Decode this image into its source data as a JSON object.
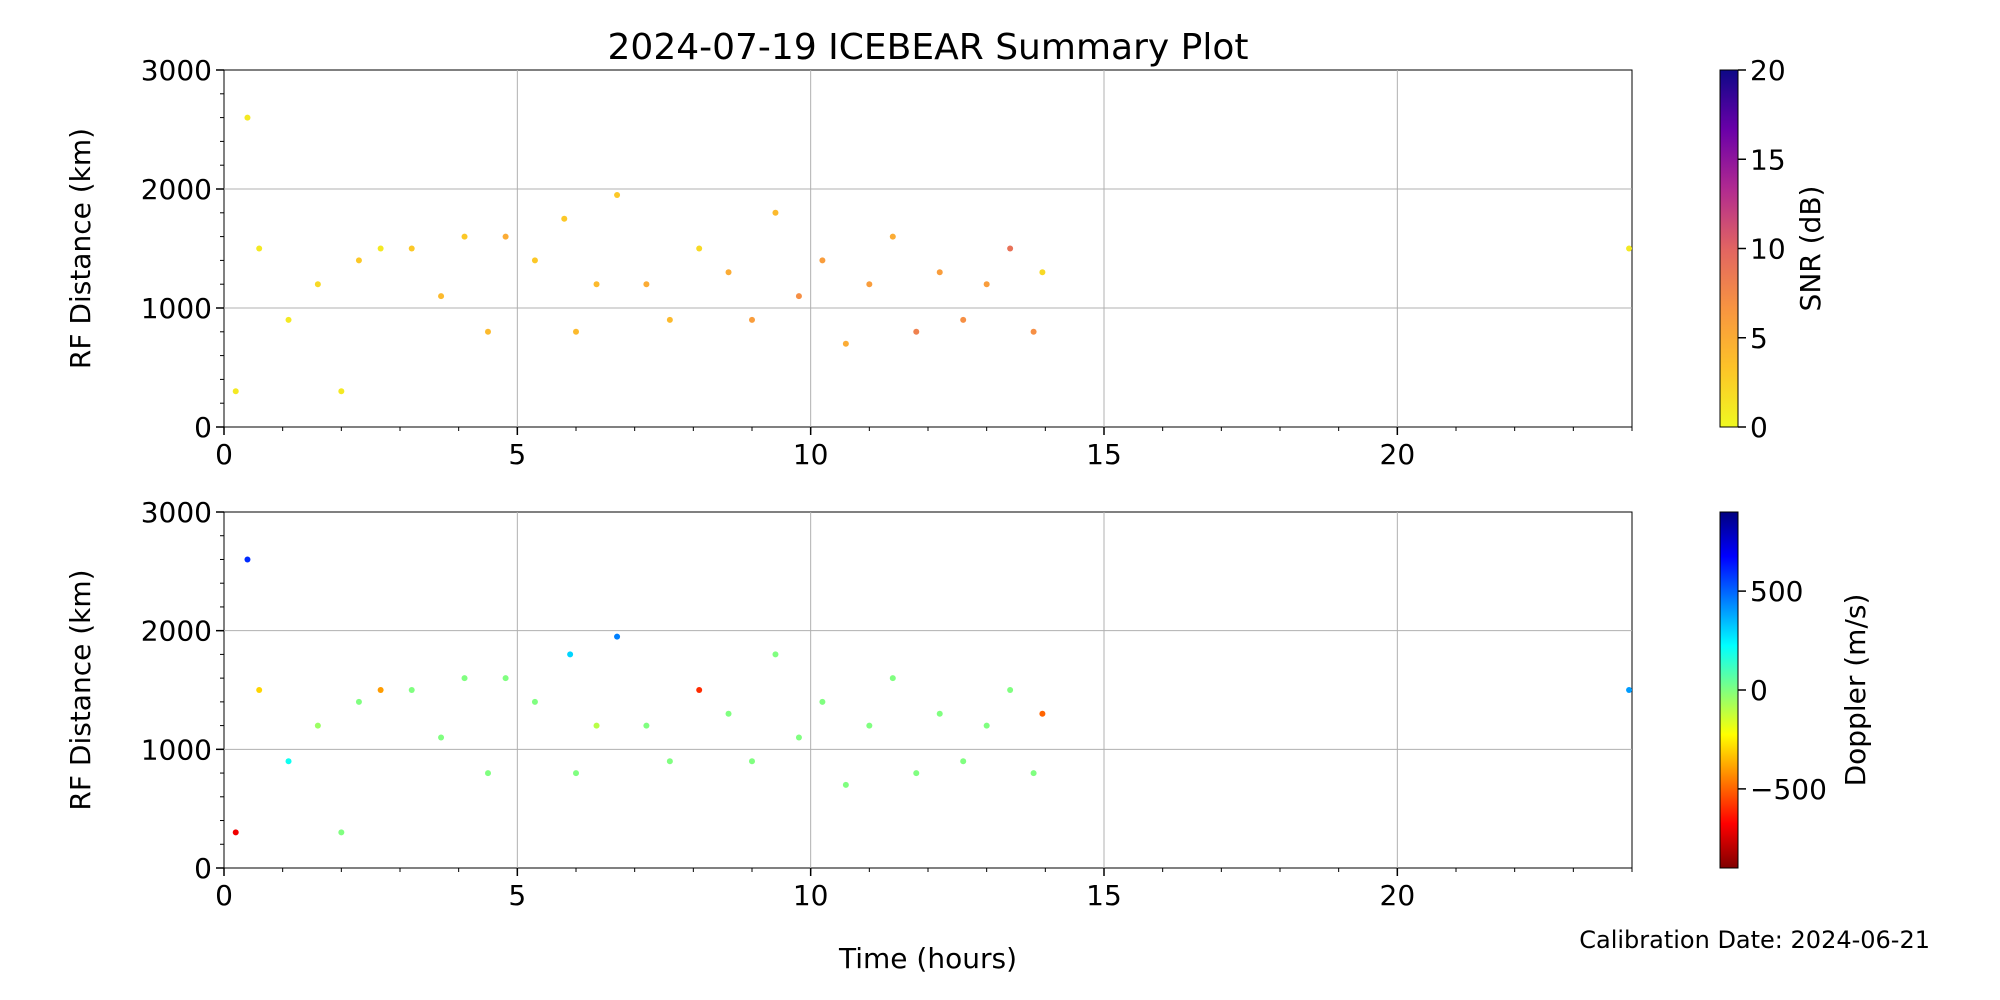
{
  "figure": {
    "title": "2024-07-19 ICEBEAR Summary Plot",
    "xlabel": "Time (hours)",
    "calibration": "Calibration Date: 2024-06-21"
  },
  "chart_data": [
    {
      "type": "scatter",
      "panel": "top",
      "ylabel": "RF Distance (km)",
      "xlim": [
        0,
        24
      ],
      "ylim": [
        0,
        3000
      ],
      "xticks": [
        0,
        5,
        10,
        15,
        20
      ],
      "xtick_labels": [
        "0",
        "5",
        "10",
        "15",
        "20"
      ],
      "yticks": [
        0,
        1000,
        2000,
        3000
      ],
      "ytick_labels": [
        "0",
        "1000",
        "2000",
        "3000"
      ],
      "grid": true,
      "colorbar": {
        "label": "SNR (dB)",
        "range": [
          0,
          20
        ],
        "ticks": [
          0,
          5,
          10,
          15,
          20
        ],
        "tick_labels": [
          "0",
          "5",
          "10",
          "15",
          "20"
        ],
        "colormap": "plasma_r",
        "colors": [
          "#f0f921",
          "#fdc328",
          "#f89441",
          "#e16462",
          "#b12a90",
          "#6a00a8",
          "#0d0887"
        ]
      },
      "color_by": "snr",
      "series": [
        {
          "x": 0.2,
          "y": 300,
          "snr": 1
        },
        {
          "x": 0.4,
          "y": 2600,
          "snr": 1
        },
        {
          "x": 0.6,
          "y": 1500,
          "snr": 1
        },
        {
          "x": 1.1,
          "y": 900,
          "snr": 1
        },
        {
          "x": 1.6,
          "y": 1200,
          "snr": 2
        },
        {
          "x": 2.0,
          "y": 300,
          "snr": 1
        },
        {
          "x": 2.3,
          "y": 1400,
          "snr": 3
        },
        {
          "x": 2.67,
          "y": 1500,
          "snr": 1
        },
        {
          "x": 3.2,
          "y": 1500,
          "snr": 3
        },
        {
          "x": 3.7,
          "y": 1100,
          "snr": 4
        },
        {
          "x": 4.1,
          "y": 1600,
          "snr": 3
        },
        {
          "x": 4.5,
          "y": 800,
          "snr": 4
        },
        {
          "x": 4.8,
          "y": 1600,
          "snr": 5
        },
        {
          "x": 5.3,
          "y": 1400,
          "snr": 3
        },
        {
          "x": 5.8,
          "y": 1750,
          "snr": 3
        },
        {
          "x": 6.0,
          "y": 800,
          "snr": 4
        },
        {
          "x": 6.35,
          "y": 1200,
          "snr": 4
        },
        {
          "x": 6.7,
          "y": 1950,
          "snr": 3
        },
        {
          "x": 7.2,
          "y": 1200,
          "snr": 5
        },
        {
          "x": 7.6,
          "y": 900,
          "snr": 4
        },
        {
          "x": 8.1,
          "y": 1500,
          "snr": 2
        },
        {
          "x": 8.6,
          "y": 1300,
          "snr": 5
        },
        {
          "x": 9.0,
          "y": 900,
          "snr": 6
        },
        {
          "x": 9.4,
          "y": 1800,
          "snr": 4
        },
        {
          "x": 9.8,
          "y": 1100,
          "snr": 7
        },
        {
          "x": 10.2,
          "y": 1400,
          "snr": 6
        },
        {
          "x": 10.6,
          "y": 700,
          "snr": 5
        },
        {
          "x": 11.0,
          "y": 1200,
          "snr": 6
        },
        {
          "x": 11.4,
          "y": 1600,
          "snr": 5
        },
        {
          "x": 11.8,
          "y": 800,
          "snr": 8
        },
        {
          "x": 12.2,
          "y": 1300,
          "snr": 6
        },
        {
          "x": 12.6,
          "y": 900,
          "snr": 7
        },
        {
          "x": 13.0,
          "y": 1200,
          "snr": 6
        },
        {
          "x": 13.4,
          "y": 1500,
          "snr": 9
        },
        {
          "x": 13.8,
          "y": 800,
          "snr": 7
        },
        {
          "x": 13.95,
          "y": 1300,
          "snr": 2
        },
        {
          "x": 23.95,
          "y": 1500,
          "snr": 1
        }
      ]
    },
    {
      "type": "scatter",
      "panel": "bottom",
      "ylabel": "RF Distance (km)",
      "xlim": [
        0,
        24
      ],
      "ylim": [
        0,
        3000
      ],
      "xticks": [
        0,
        5,
        10,
        15,
        20
      ],
      "xtick_labels": [
        "0",
        "5",
        "10",
        "15",
        "20"
      ],
      "yticks": [
        0,
        1000,
        2000,
        3000
      ],
      "ytick_labels": [
        "0",
        "1000",
        "2000",
        "3000"
      ],
      "grid": true,
      "colorbar": {
        "label": "Doppler (m/s)",
        "range": [
          -900,
          900
        ],
        "ticks": [
          -500,
          0,
          500
        ],
        "tick_labels": [
          "−500",
          "0",
          "500"
        ],
        "colormap": "jet_r",
        "colors": [
          "#800000",
          "#ff0000",
          "#ff8000",
          "#ffff00",
          "#80ff80",
          "#00ffff",
          "#0080ff",
          "#0000ff",
          "#000080"
        ]
      },
      "color_by": "doppler",
      "series": [
        {
          "x": 0.2,
          "y": 300,
          "doppler": -700
        },
        {
          "x": 0.4,
          "y": 2600,
          "doppler": 600
        },
        {
          "x": 0.6,
          "y": 1500,
          "doppler": -300
        },
        {
          "x": 1.1,
          "y": 900,
          "doppler": 200
        },
        {
          "x": 1.6,
          "y": 1200,
          "doppler": -50
        },
        {
          "x": 2.0,
          "y": 300,
          "doppler": 0
        },
        {
          "x": 2.3,
          "y": 1400,
          "doppler": 0
        },
        {
          "x": 2.67,
          "y": 1500,
          "doppler": -400
        },
        {
          "x": 3.2,
          "y": 1500,
          "doppler": 0
        },
        {
          "x": 3.7,
          "y": 1100,
          "doppler": 0
        },
        {
          "x": 4.1,
          "y": 1600,
          "doppler": 0
        },
        {
          "x": 4.5,
          "y": 800,
          "doppler": 0
        },
        {
          "x": 4.8,
          "y": 1600,
          "doppler": 0
        },
        {
          "x": 5.3,
          "y": 1400,
          "doppler": 0
        },
        {
          "x": 5.9,
          "y": 1800,
          "doppler": 300
        },
        {
          "x": 6.0,
          "y": 800,
          "doppler": 0
        },
        {
          "x": 6.35,
          "y": 1200,
          "doppler": -100
        },
        {
          "x": 6.7,
          "y": 1950,
          "doppler": 450
        },
        {
          "x": 7.2,
          "y": 1200,
          "doppler": 0
        },
        {
          "x": 7.6,
          "y": 900,
          "doppler": 0
        },
        {
          "x": 8.1,
          "y": 1500,
          "doppler": -600
        },
        {
          "x": 8.6,
          "y": 1300,
          "doppler": 0
        },
        {
          "x": 9.0,
          "y": 900,
          "doppler": 0
        },
        {
          "x": 9.4,
          "y": 1800,
          "doppler": 0
        },
        {
          "x": 9.8,
          "y": 1100,
          "doppler": 0
        },
        {
          "x": 10.2,
          "y": 1400,
          "doppler": 0
        },
        {
          "x": 10.6,
          "y": 700,
          "doppler": 0
        },
        {
          "x": 11.0,
          "y": 1200,
          "doppler": 0
        },
        {
          "x": 11.4,
          "y": 1600,
          "doppler": 0
        },
        {
          "x": 11.8,
          "y": 800,
          "doppler": 0
        },
        {
          "x": 12.2,
          "y": 1300,
          "doppler": 0
        },
        {
          "x": 12.6,
          "y": 900,
          "doppler": 0
        },
        {
          "x": 13.0,
          "y": 1200,
          "doppler": 0
        },
        {
          "x": 13.4,
          "y": 1500,
          "doppler": 0
        },
        {
          "x": 13.8,
          "y": 800,
          "doppler": 0
        },
        {
          "x": 13.95,
          "y": 1300,
          "doppler": -500
        },
        {
          "x": 23.95,
          "y": 1500,
          "doppler": 400
        }
      ]
    }
  ]
}
